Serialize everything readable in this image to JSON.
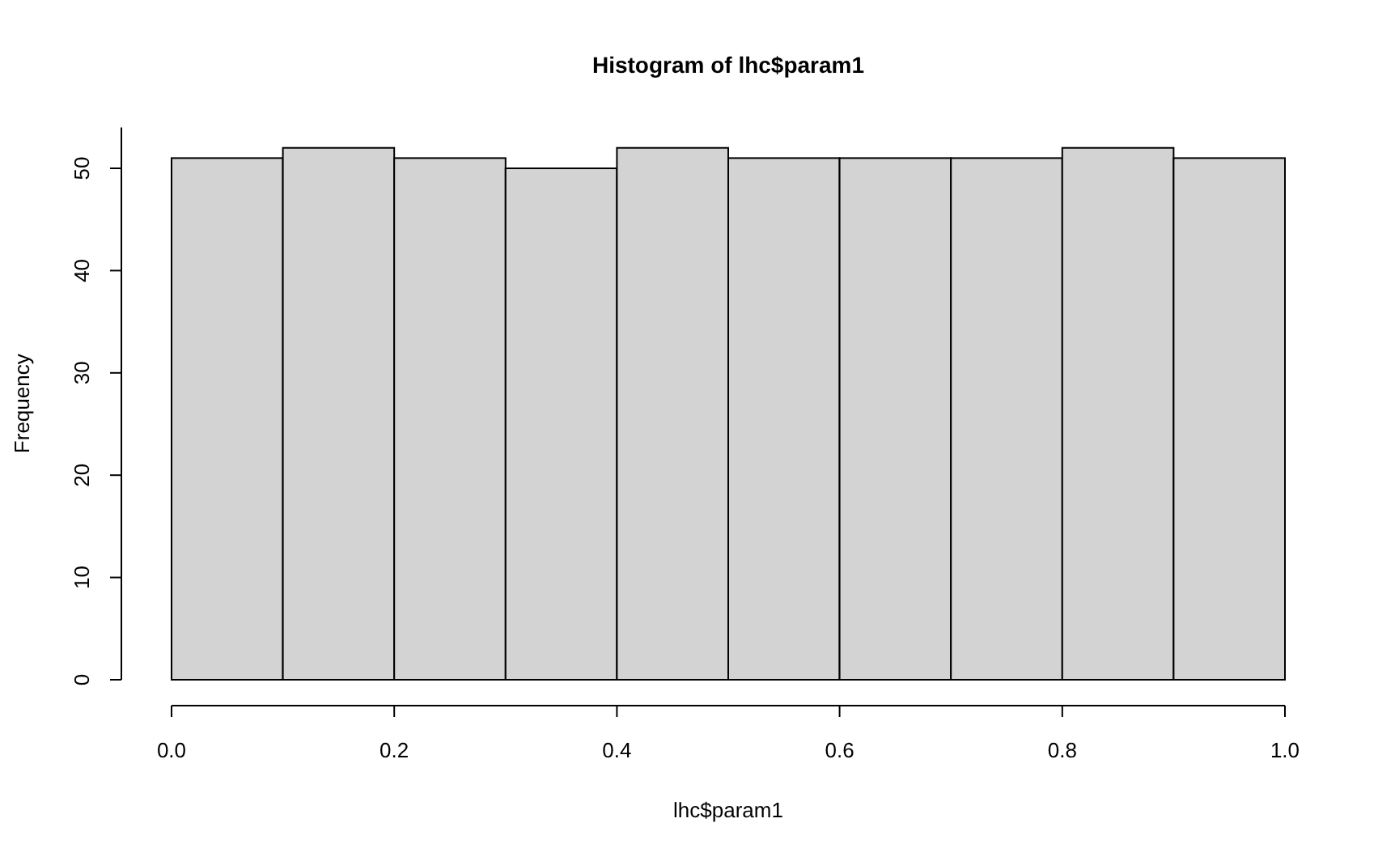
{
  "chart_data": {
    "type": "histogram",
    "title": "Histogram of lhc$param1",
    "xlabel": "lhc$param1",
    "ylabel": "Frequency",
    "bins": [
      0,
      0.1,
      0.2,
      0.3,
      0.4,
      0.5,
      0.6,
      0.7,
      0.8,
      0.9,
      1
    ],
    "values": [
      51,
      52,
      51,
      50,
      52,
      51,
      51,
      51,
      52,
      51
    ],
    "color": "#d3d3d3",
    "xlim": [
      0,
      1
    ],
    "xticks": [
      {
        "value": 0,
        "label": "0.0"
      },
      0.2,
      0.4,
      0.6,
      0.8,
      {
        "value": 1,
        "label": "1.0"
      }
    ],
    "ylim": [
      0,
      54
    ],
    "yticks": [
      0,
      10,
      20,
      30,
      40,
      50
    ],
    "grid": false
  }
}
